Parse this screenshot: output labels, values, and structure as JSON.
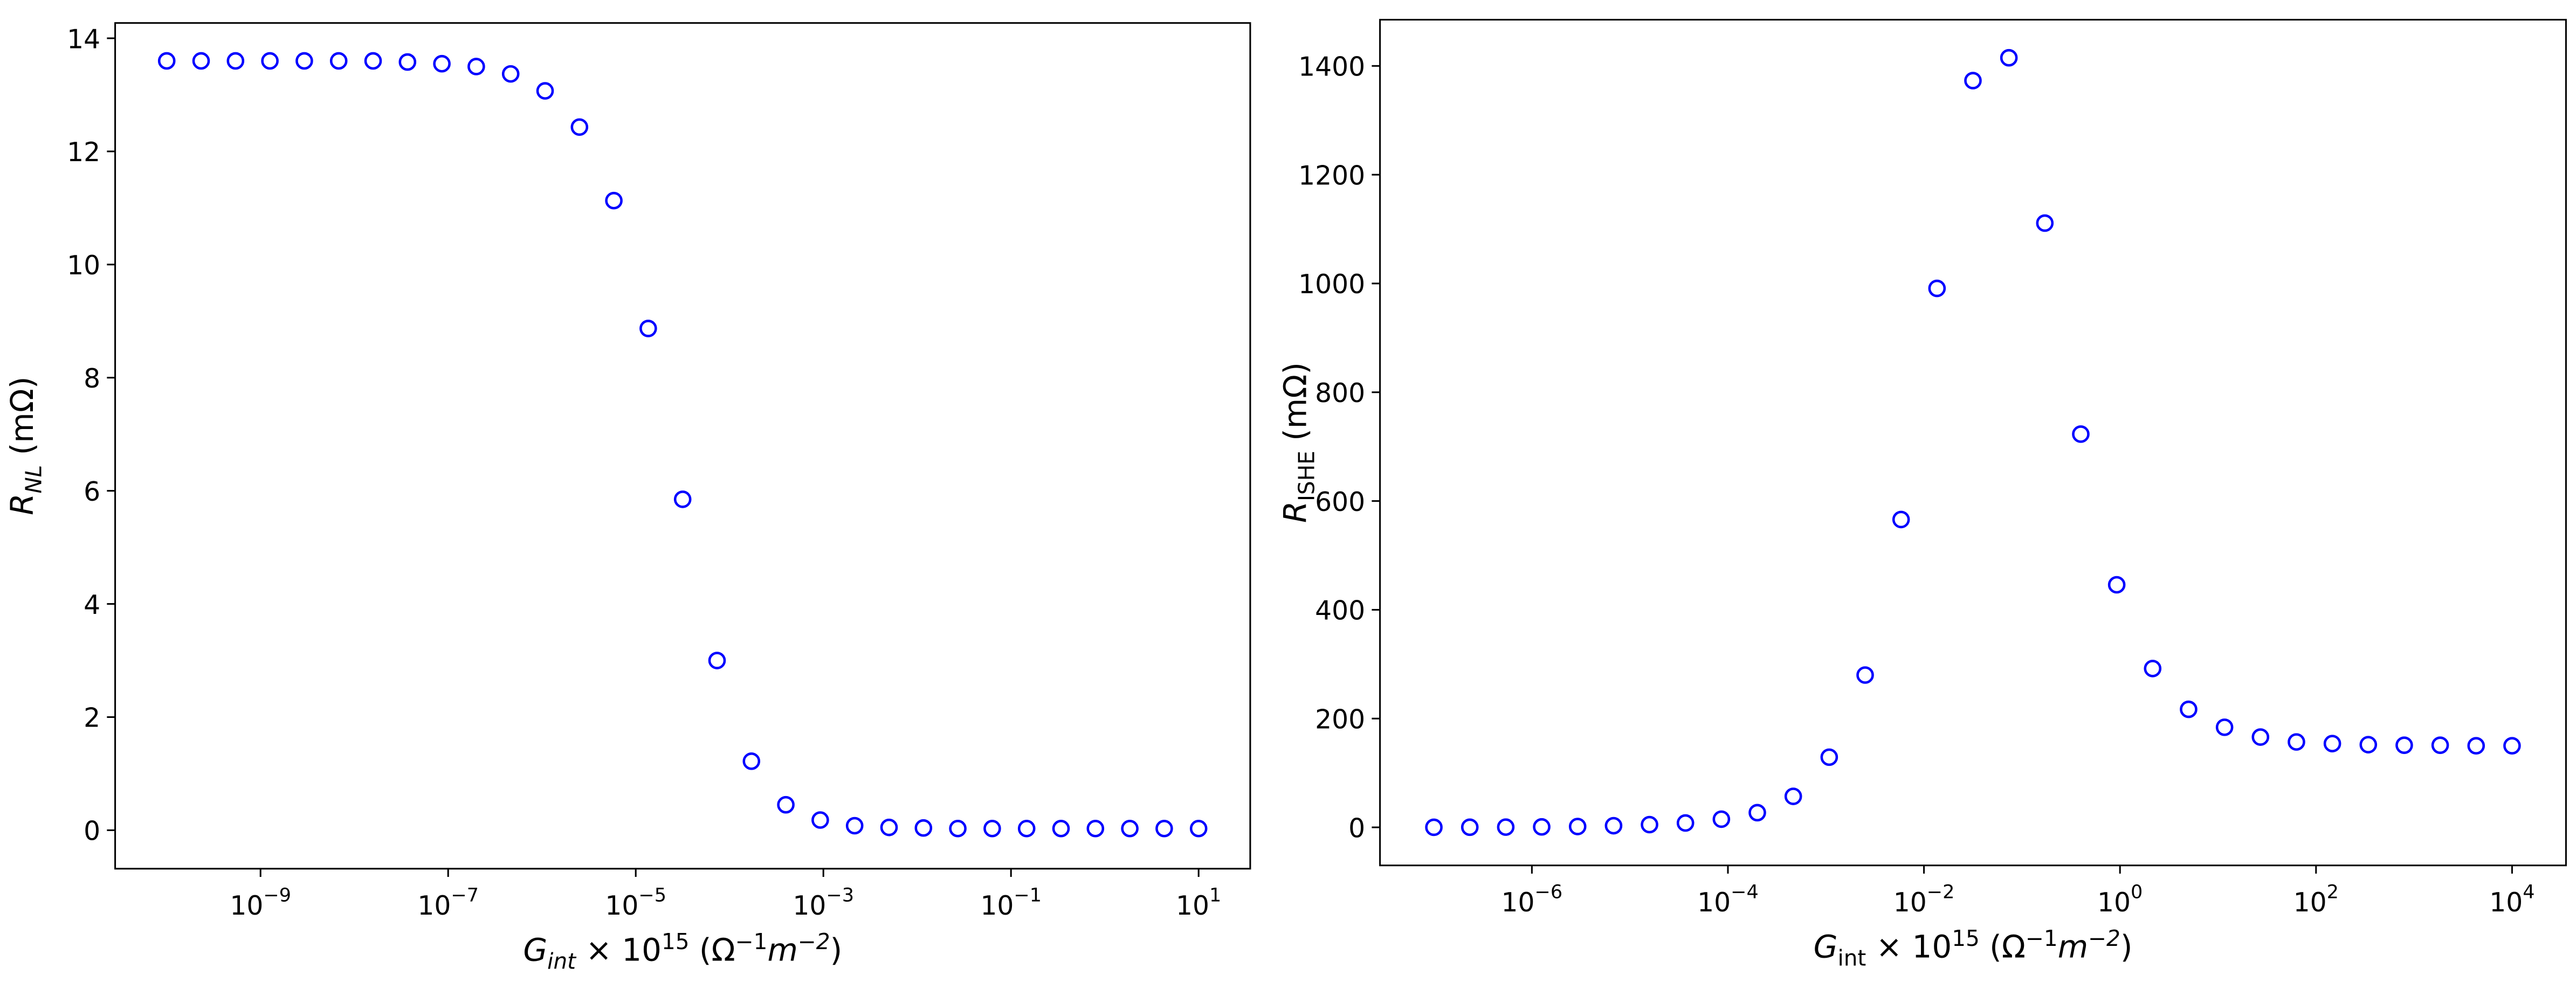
{
  "chart_data": [
    {
      "type": "scatter",
      "xscale": "log",
      "color": "#0000ff",
      "x": [
        1e-10,
        2.326e-10,
        5.412e-10,
        1.259e-09,
        2.929e-09,
        6.813e-09,
        1.585e-08,
        3.687e-08,
        8.577e-08,
        1.995e-07,
        4.642e-07,
        1.08e-06,
        2.512e-06,
        5.843e-06,
        1.359e-05,
        3.162e-05,
        7.356e-05,
        0.0001711,
        0.0003981,
        0.0009261,
        0.002154,
        0.005012,
        0.01166,
        0.02712,
        0.0631,
        0.1468,
        0.3415,
        0.7943,
        1.848,
        4.299,
        10
      ],
      "values": [
        13.6,
        13.6,
        13.6,
        13.6,
        13.6,
        13.6,
        13.6,
        13.58,
        13.55,
        13.5,
        13.37,
        13.07,
        12.43,
        11.13,
        8.87,
        5.85,
        3.0,
        1.22,
        0.45,
        0.18,
        0.08,
        0.05,
        0.04,
        0.03,
        0.03,
        0.03,
        0.03,
        0.03,
        0.03,
        0.03,
        0.03
      ],
      "xlim": [
        2.82e-11,
        35.5
      ],
      "ylim": [
        -0.68,
        14.27
      ],
      "xticks": [
        {
          "value": 1e-09,
          "label": [
            "10",
            "−9"
          ]
        },
        {
          "value": 1e-07,
          "label": [
            "10",
            "−7"
          ]
        },
        {
          "value": 1e-05,
          "label": [
            "10",
            "−5"
          ]
        },
        {
          "value": 0.001,
          "label": [
            "10",
            "−3"
          ]
        },
        {
          "value": 0.1,
          "label": [
            "10",
            "−1"
          ]
        },
        {
          "value": 10,
          "label": [
            "10",
            "1"
          ]
        }
      ],
      "yticks": [
        0,
        2,
        4,
        6,
        8,
        10,
        12,
        14
      ],
      "xlabel": [
        {
          "text": "G",
          "italic": true
        },
        {
          "text": "int",
          "italic": true,
          "shift": "sub"
        },
        {
          "text": " × 10"
        },
        {
          "text": "15",
          "shift": "sup"
        },
        {
          "text": " (Ω"
        },
        {
          "text": "−1",
          "shift": "sup"
        },
        {
          "text": "m",
          "italic": true
        },
        {
          "text": "−2",
          "italic": true,
          "shift": "sup"
        },
        {
          "text": ")"
        }
      ],
      "ylabel": [
        {
          "text": "R",
          "italic": true
        },
        {
          "text": "NL",
          "italic": true,
          "shift": "sub"
        },
        {
          "text": " (mΩ)"
        }
      ]
    },
    {
      "type": "scatter",
      "xscale": "log",
      "color": "#0000ff",
      "x": [
        1e-07,
        2.326e-07,
        5.412e-07,
        1.259e-06,
        2.929e-06,
        6.813e-06,
        1.585e-05,
        3.687e-05,
        8.577e-05,
        0.0001995,
        0.0004642,
        0.00108,
        0.002512,
        0.005843,
        0.01359,
        0.03162,
        0.07356,
        0.1711,
        0.3981,
        0.9261,
        2.154,
        5.012,
        11.66,
        27.12,
        63.1,
        146.8,
        341.5,
        794.3,
        1848,
        4299,
        10000
      ],
      "values": [
        0.1,
        0.2,
        0.4,
        0.8,
        1.5,
        3,
        5,
        8,
        15,
        27,
        57,
        129,
        280,
        566,
        991,
        1373,
        1415,
        1111,
        723,
        446,
        292,
        217,
        184,
        166,
        157,
        154,
        152,
        151,
        151,
        150,
        150
      ],
      "xlim": [
        2.82e-08,
        35500
      ],
      "ylim": [
        -70,
        1485
      ],
      "xticks": [
        {
          "value": 1e-06,
          "label": [
            "10",
            "−6"
          ]
        },
        {
          "value": 0.0001,
          "label": [
            "10",
            "−4"
          ]
        },
        {
          "value": 0.01,
          "label": [
            "10",
            "−2"
          ]
        },
        {
          "value": 1,
          "label": [
            "10",
            "0"
          ]
        },
        {
          "value": 100,
          "label": [
            "10",
            "2"
          ]
        },
        {
          "value": 10000,
          "label": [
            "10",
            "4"
          ]
        }
      ],
      "yticks": [
        0,
        200,
        400,
        600,
        800,
        1000,
        1200,
        1400
      ],
      "xlabel": [
        {
          "text": "G",
          "italic": true
        },
        {
          "text": "int",
          "shift": "sub"
        },
        {
          "text": " × 10"
        },
        {
          "text": "15",
          "shift": "sup"
        },
        {
          "text": " (Ω"
        },
        {
          "text": "−1",
          "shift": "sup"
        },
        {
          "text": "m",
          "italic": true
        },
        {
          "text": "−2",
          "italic": true,
          "shift": "sup"
        },
        {
          "text": ")"
        }
      ],
      "ylabel": [
        {
          "text": "R",
          "italic": true
        },
        {
          "text": "ISHE",
          "shift": "sub"
        },
        {
          "text": " (mΩ)"
        }
      ]
    }
  ]
}
